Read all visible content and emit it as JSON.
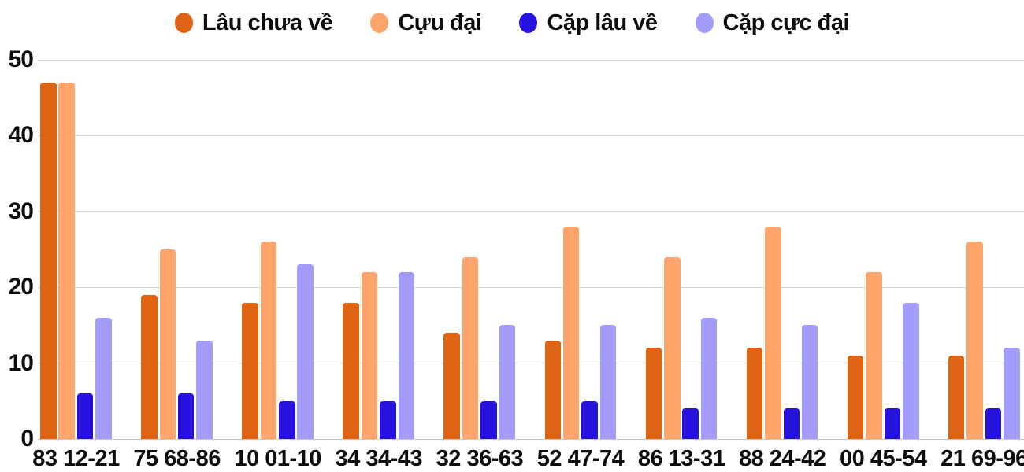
{
  "chart_data": {
    "type": "bar",
    "title": "",
    "xlabel": "",
    "ylabel": "",
    "ylim": [
      0,
      50
    ],
    "yticks": [
      0,
      10,
      20,
      30,
      40,
      50
    ],
    "grid": true,
    "legend_position": "top",
    "categories": [
      "83 12-21",
      "75 68-86",
      "10 01-10",
      "34 34-43",
      "32 36-63",
      "52 47-74",
      "86 13-31",
      "88 24-42",
      "00 45-54",
      "21 69-96"
    ],
    "series": [
      {
        "name": "Lâu chưa về",
        "color": "#DE6414",
        "values": [
          47,
          19,
          18,
          18,
          14,
          13,
          12,
          12,
          11,
          11
        ]
      },
      {
        "name": "Cựu đại",
        "color": "#FFA46B",
        "values": [
          47,
          25,
          26,
          22,
          24,
          28,
          24,
          28,
          22,
          26
        ]
      },
      {
        "name": "Cặp lâu về",
        "color": "#2613DF",
        "values": [
          6,
          6,
          5,
          5,
          5,
          5,
          4,
          4,
          4,
          4
        ]
      },
      {
        "name": "Cặp cực đại",
        "color": "#A49CFA",
        "values": [
          16,
          13,
          23,
          22,
          15,
          15,
          16,
          15,
          18,
          12
        ]
      }
    ],
    "colors": {
      "background": "#FFFFFF",
      "gridline": "#DBDBDB",
      "baseline": "#C9C9C9",
      "text": "#0D0D0D"
    }
  }
}
